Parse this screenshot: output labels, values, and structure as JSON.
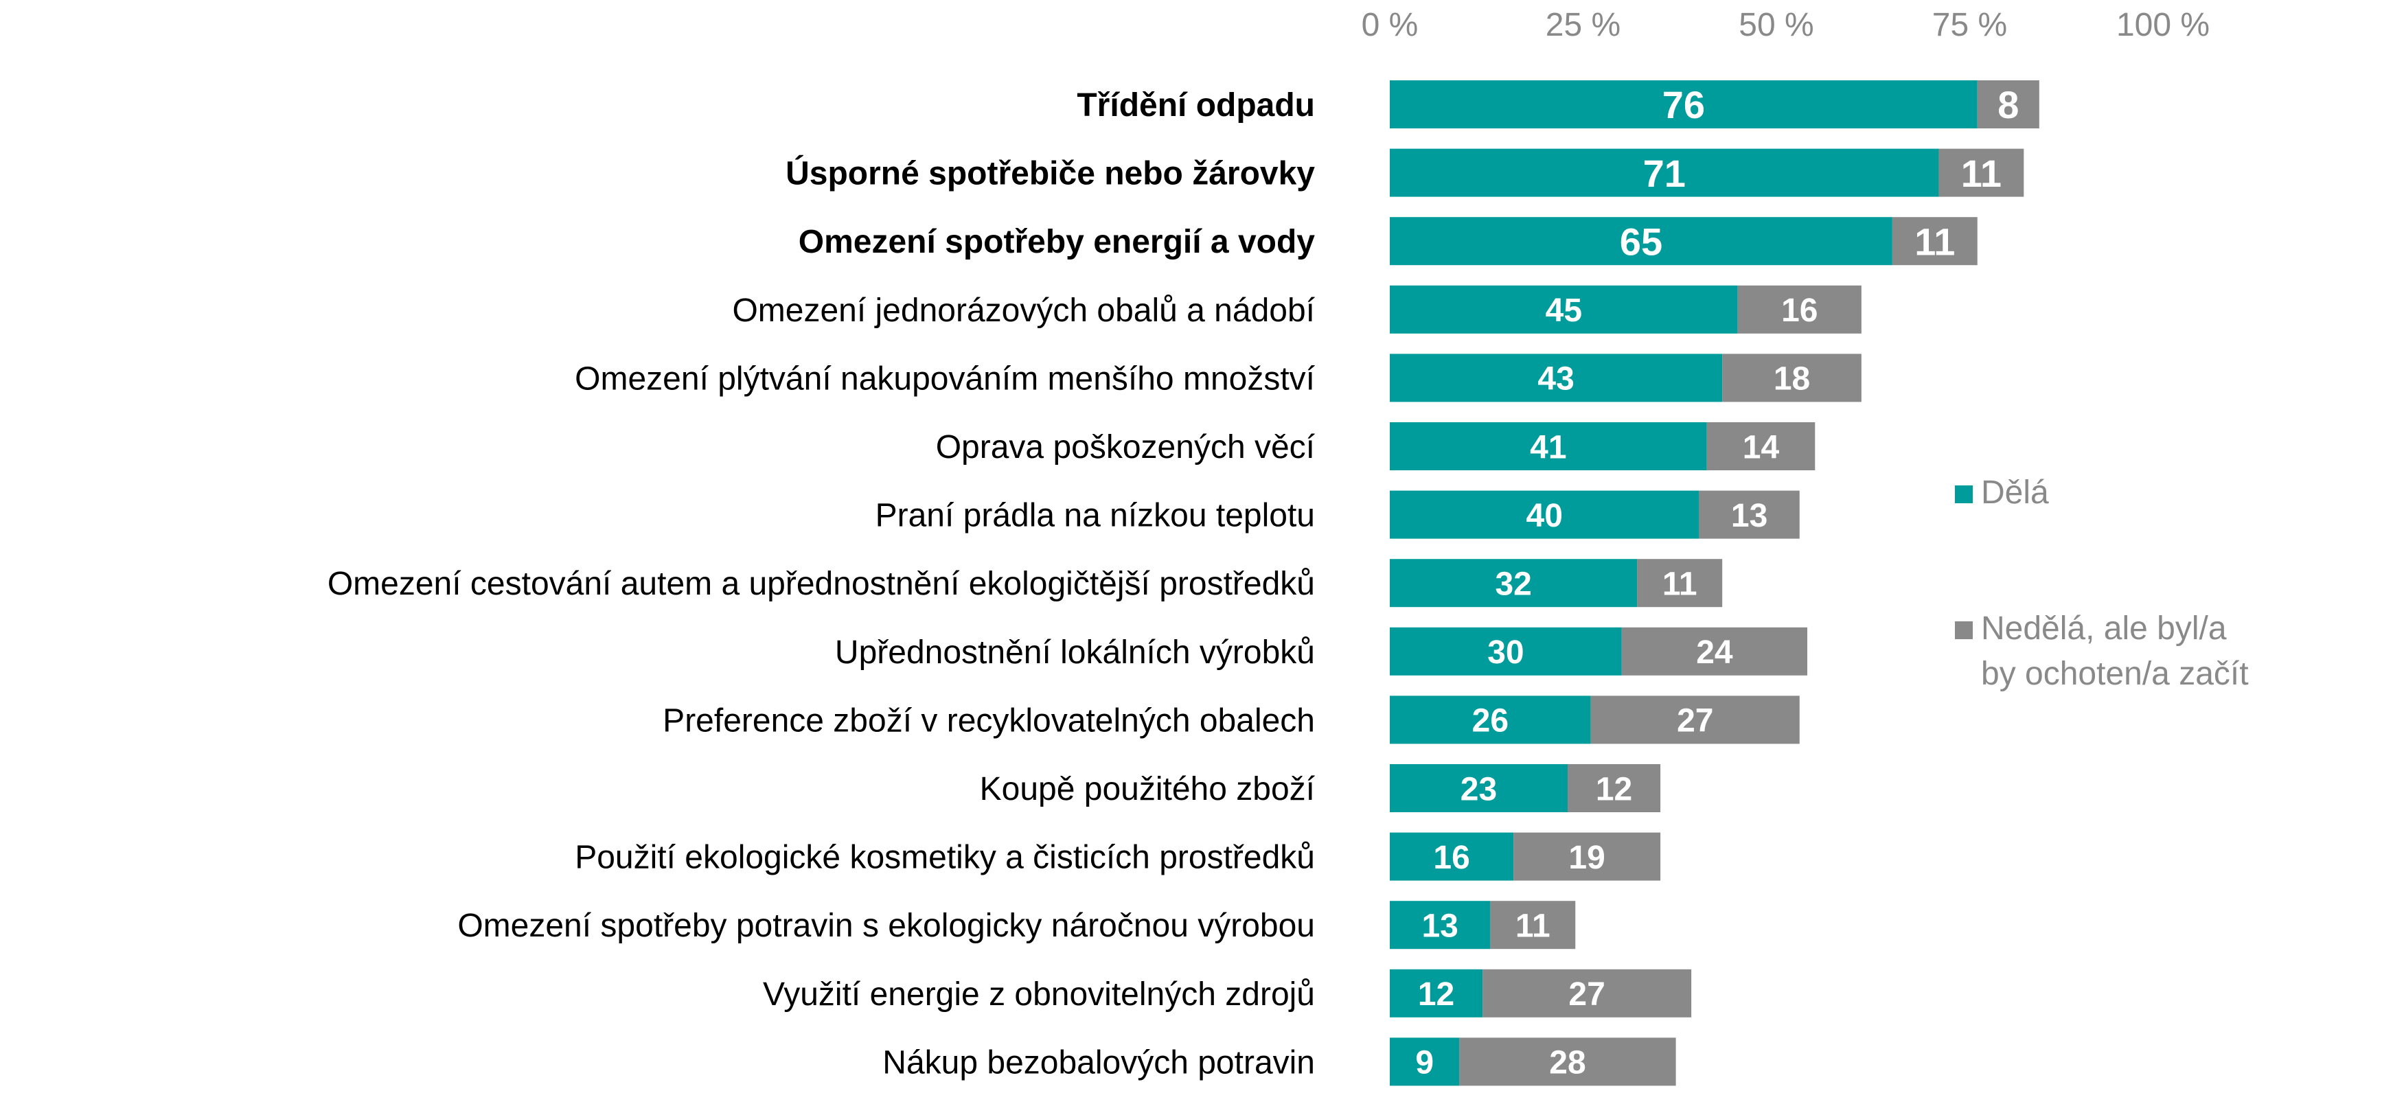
{
  "chart_data": {
    "type": "bar",
    "orientation": "horizontal",
    "stacked": true,
    "xlim": [
      0,
      100
    ],
    "x_ticks": [
      "0 %",
      "25 %",
      "50 %",
      "75 %",
      "100 %"
    ],
    "x_axis_position": "top",
    "grid": false,
    "legend_position": "right",
    "categories": [
      "Třídění odpadu",
      "Úsporné spotřebiče nebo žárovky",
      "Omezení spotřeby energií a vody",
      "Omezení jednorázových obalů a nádobí",
      "Omezení plýtvání nakupováním menšího množství",
      "Oprava poškozených věcí",
      "Praní prádla na nízkou teplotu",
      "Omezení cestování autem a upřednostnění ekologičtější prostředků",
      "Upřednostnění lokálních výrobků",
      "Preference zboží v recyklovatelných obalech",
      "Koupě použitého zboží",
      "Použití ekologické kosmetiky a čisticích prostředků",
      "Omezení spotřeby potravin s ekologicky náročnou výrobou",
      "Využití energie z obnovitelných zdrojů",
      "Nákup bezobalových potravin"
    ],
    "bold_categories": [
      0,
      1,
      2
    ],
    "series": [
      {
        "name": "Dělá",
        "color": "#009C9C",
        "values": [
          76,
          71,
          65,
          45,
          43,
          41,
          40,
          32,
          30,
          26,
          23,
          16,
          13,
          12,
          9
        ]
      },
      {
        "name": "Nedělá, ale byl/a by ochoten/a začít",
        "legend_lines": [
          "Nedělá, ale byl/a",
          "by ochoten/a začít"
        ],
        "color": "#898989",
        "values": [
          8,
          11,
          11,
          16,
          18,
          14,
          13,
          11,
          24,
          27,
          12,
          19,
          11,
          27,
          28
        ]
      }
    ]
  }
}
